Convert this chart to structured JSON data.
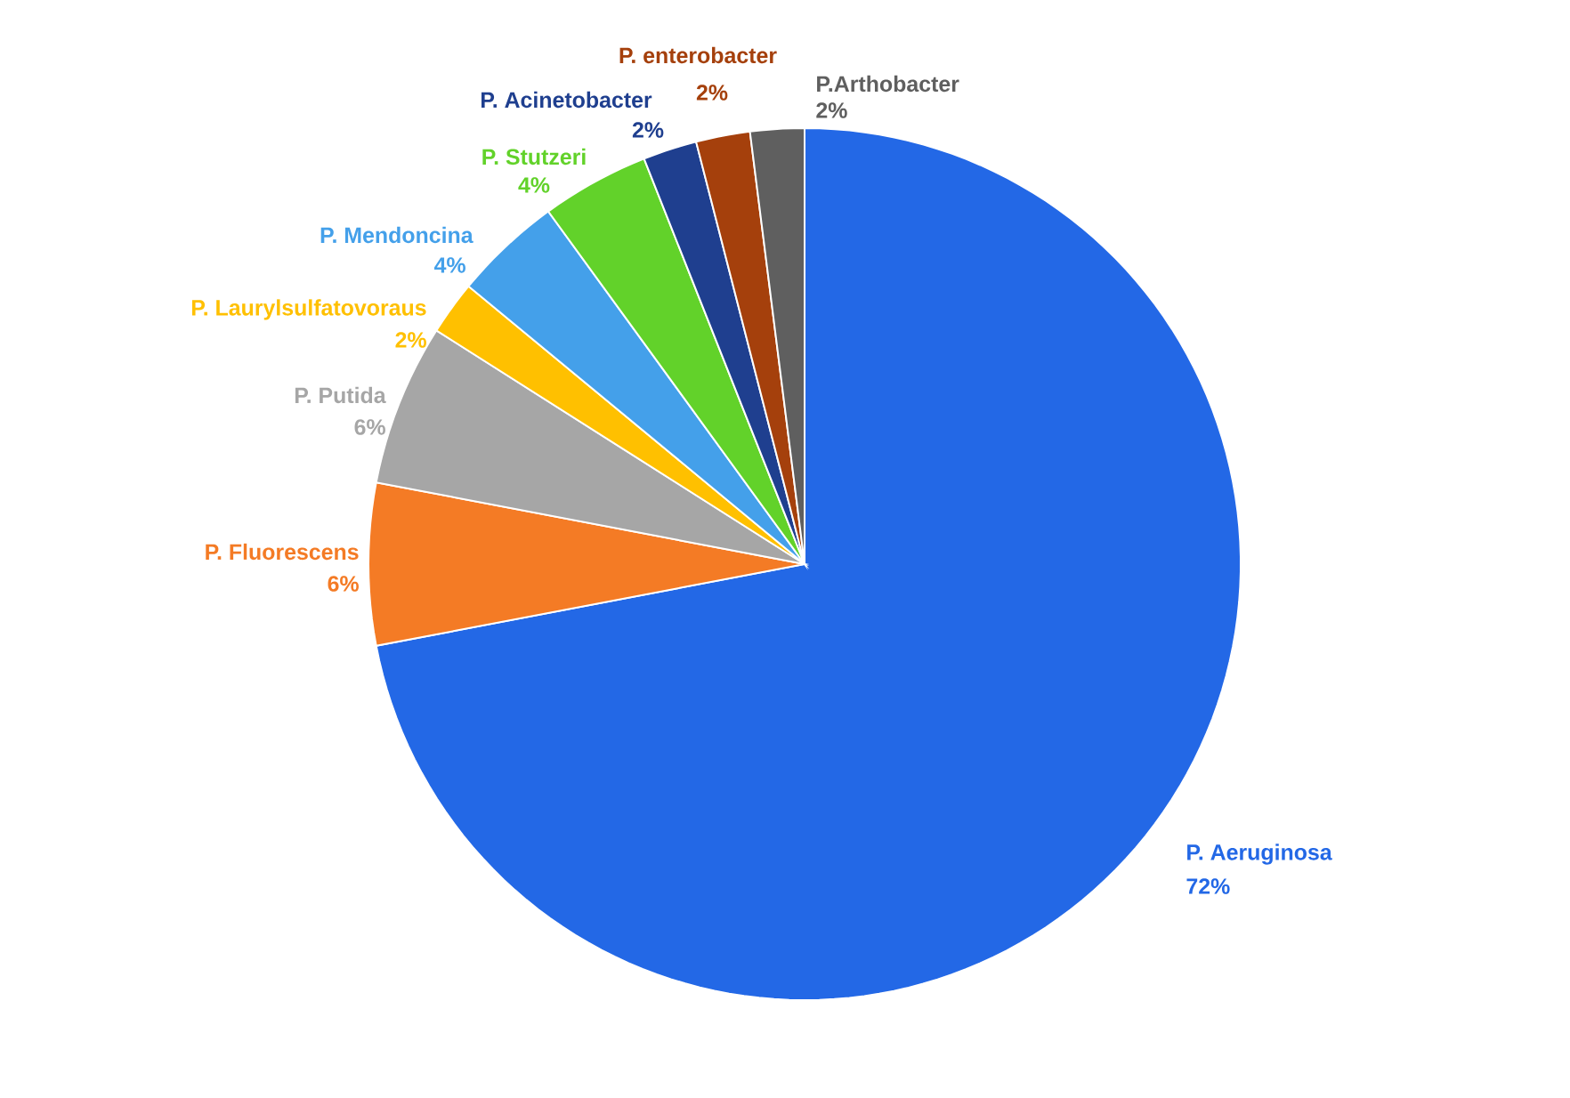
{
  "chart_data": {
    "type": "pie",
    "categories": [
      "P. Aeruginosa",
      "P. Fluorescens",
      "P. Putida",
      "P. Laurylsulfatovoraus",
      "P. Mendoncina",
      "P. Stutzeri",
      "P. Acinetobacter",
      "P. enterobacter",
      "P.Arthobacter"
    ],
    "values": [
      72,
      6,
      6,
      2,
      4,
      4,
      2,
      2,
      2
    ],
    "value_labels": [
      "72%",
      "6%",
      "6%",
      "2%",
      "4%",
      "4%",
      "2%",
      "2%",
      "2%"
    ],
    "colors": [
      "#2368E6",
      "#F47B25",
      "#A6A6A6",
      "#FFC000",
      "#44A0EA",
      "#62D22A",
      "#1F3F8F",
      "#A5400C",
      "#5F5F5F"
    ]
  }
}
